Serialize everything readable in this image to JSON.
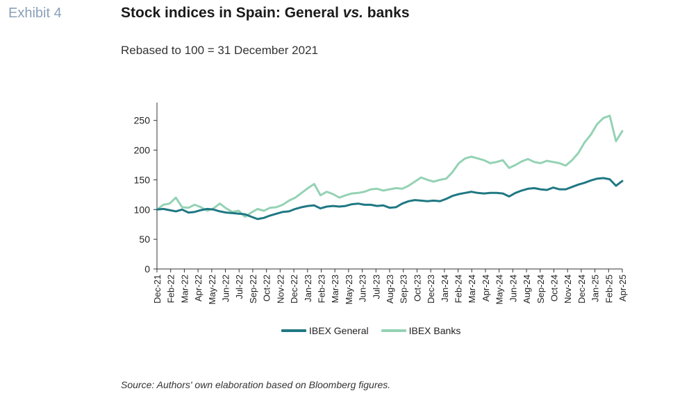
{
  "header": {
    "exhibit": "Exhibit 4",
    "title_main": "Stock indices in Spain: General ",
    "title_italic": "vs.",
    "title_end": " banks",
    "subtitle": "Rebased to 100 = 31 December 2021"
  },
  "source": "Source: Authors' own elaboration based on Bloomberg figures.",
  "chart_data": {
    "type": "line",
    "ylim": [
      0,
      280
    ],
    "yticks": [
      0,
      50,
      100,
      150,
      200,
      250
    ],
    "x_tick_labels": [
      "Dec-21",
      "Feb-22",
      "Mar-22",
      "Apr-22",
      "May-22",
      "Jun-22",
      "Jul-22",
      "Sep-22",
      "Oct-22",
      "Nov-22",
      "Dec-22",
      "Jan-23",
      "Feb-23",
      "Mar-23",
      "May-23",
      "Jun-23",
      "Jul-23",
      "Aug-23",
      "Sep-23",
      "Oct-23",
      "Dec-23",
      "Jan-24",
      "Feb-24",
      "Mar-24",
      "Apr-24",
      "May-24",
      "Jun-24",
      "Aug-24",
      "Sep-24",
      "Oct-24",
      "Nov-24",
      "Dec-24",
      "Jan-25",
      "Feb-25",
      "Apr-25"
    ],
    "legend_position": "bottom",
    "series": [
      {
        "name": "IBEX General",
        "color": "#1f7883",
        "values": [
          100,
          101,
          99,
          97,
          100,
          95,
          96,
          99,
          101,
          100,
          97,
          95,
          94,
          93,
          92,
          88,
          84,
          86,
          90,
          93,
          96,
          97,
          101,
          104,
          106,
          107,
          102,
          105,
          106,
          105,
          106,
          109,
          110,
          108,
          108,
          106,
          107,
          103,
          104,
          110,
          114,
          116,
          115,
          114,
          115,
          114,
          118,
          123,
          126,
          128,
          130,
          128,
          127,
          128,
          128,
          127,
          122,
          128,
          132,
          135,
          136,
          134,
          133,
          137,
          134,
          134,
          138,
          142,
          145,
          149,
          152,
          153,
          151,
          140,
          148
        ]
      },
      {
        "name": "IBEX Banks",
        "color": "#94d2b4",
        "values": [
          100,
          108,
          110,
          120,
          104,
          103,
          108,
          104,
          98,
          102,
          110,
          102,
          96,
          98,
          88,
          95,
          101,
          98,
          103,
          104,
          108,
          115,
          120,
          128,
          136,
          143,
          124,
          130,
          126,
          120,
          124,
          127,
          128,
          130,
          134,
          135,
          132,
          134,
          136,
          135,
          140,
          147,
          154,
          150,
          147,
          150,
          152,
          163,
          178,
          186,
          189,
          186,
          183,
          178,
          180,
          183,
          170,
          175,
          181,
          185,
          180,
          178,
          182,
          180,
          178,
          174,
          183,
          195,
          213,
          226,
          244,
          254,
          258,
          215,
          232
        ]
      }
    ]
  }
}
